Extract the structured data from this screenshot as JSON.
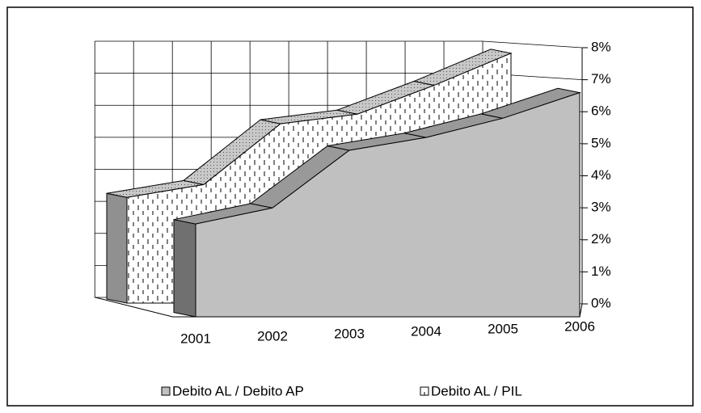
{
  "chart_data": {
    "type": "area3d",
    "categories": [
      "2001",
      "2002",
      "2003",
      "2004",
      "2005",
      "2006"
    ],
    "series": [
      {
        "name": "Debito AL / Debito AP",
        "color": "#c0c0c0",
        "values": [
          2.9,
          3.4,
          5.2,
          5.6,
          6.2,
          7.0
        ]
      },
      {
        "name": "Debito AL / PIL",
        "color": "#ffffff",
        "values": [
          3.3,
          3.7,
          5.6,
          5.9,
          6.8,
          7.8
        ]
      }
    ],
    "ylim": [
      0,
      8
    ],
    "yticks": [
      {
        "value": 0,
        "label": "0%"
      },
      {
        "value": 1,
        "label": "1%"
      },
      {
        "value": 2,
        "label": "2%"
      },
      {
        "value": 3,
        "label": "3%"
      },
      {
        "value": 4,
        "label": "4%"
      },
      {
        "value": 5,
        "label": "5%"
      },
      {
        "value": 6,
        "label": "6%"
      },
      {
        "value": 7,
        "label": "7%"
      },
      {
        "value": 8,
        "label": "8%"
      }
    ],
    "grid": true,
    "legend": "bottom"
  }
}
